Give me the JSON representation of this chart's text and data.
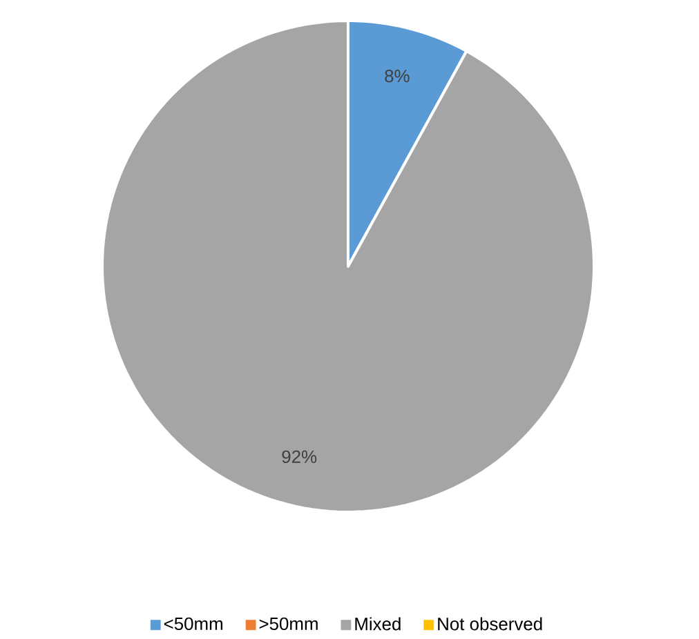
{
  "chart_data": {
    "type": "pie",
    "categories": [
      "<50mm",
      ">50mm",
      "Mixed",
      "Not observed"
    ],
    "values": [
      8,
      0,
      92,
      0
    ],
    "colors": [
      "#5b9bd5",
      "#ed7d31",
      "#a5a5a5",
      "#ffc000"
    ],
    "value_labels": [
      "8%",
      null,
      "92%",
      null
    ],
    "legend": "bottom"
  }
}
